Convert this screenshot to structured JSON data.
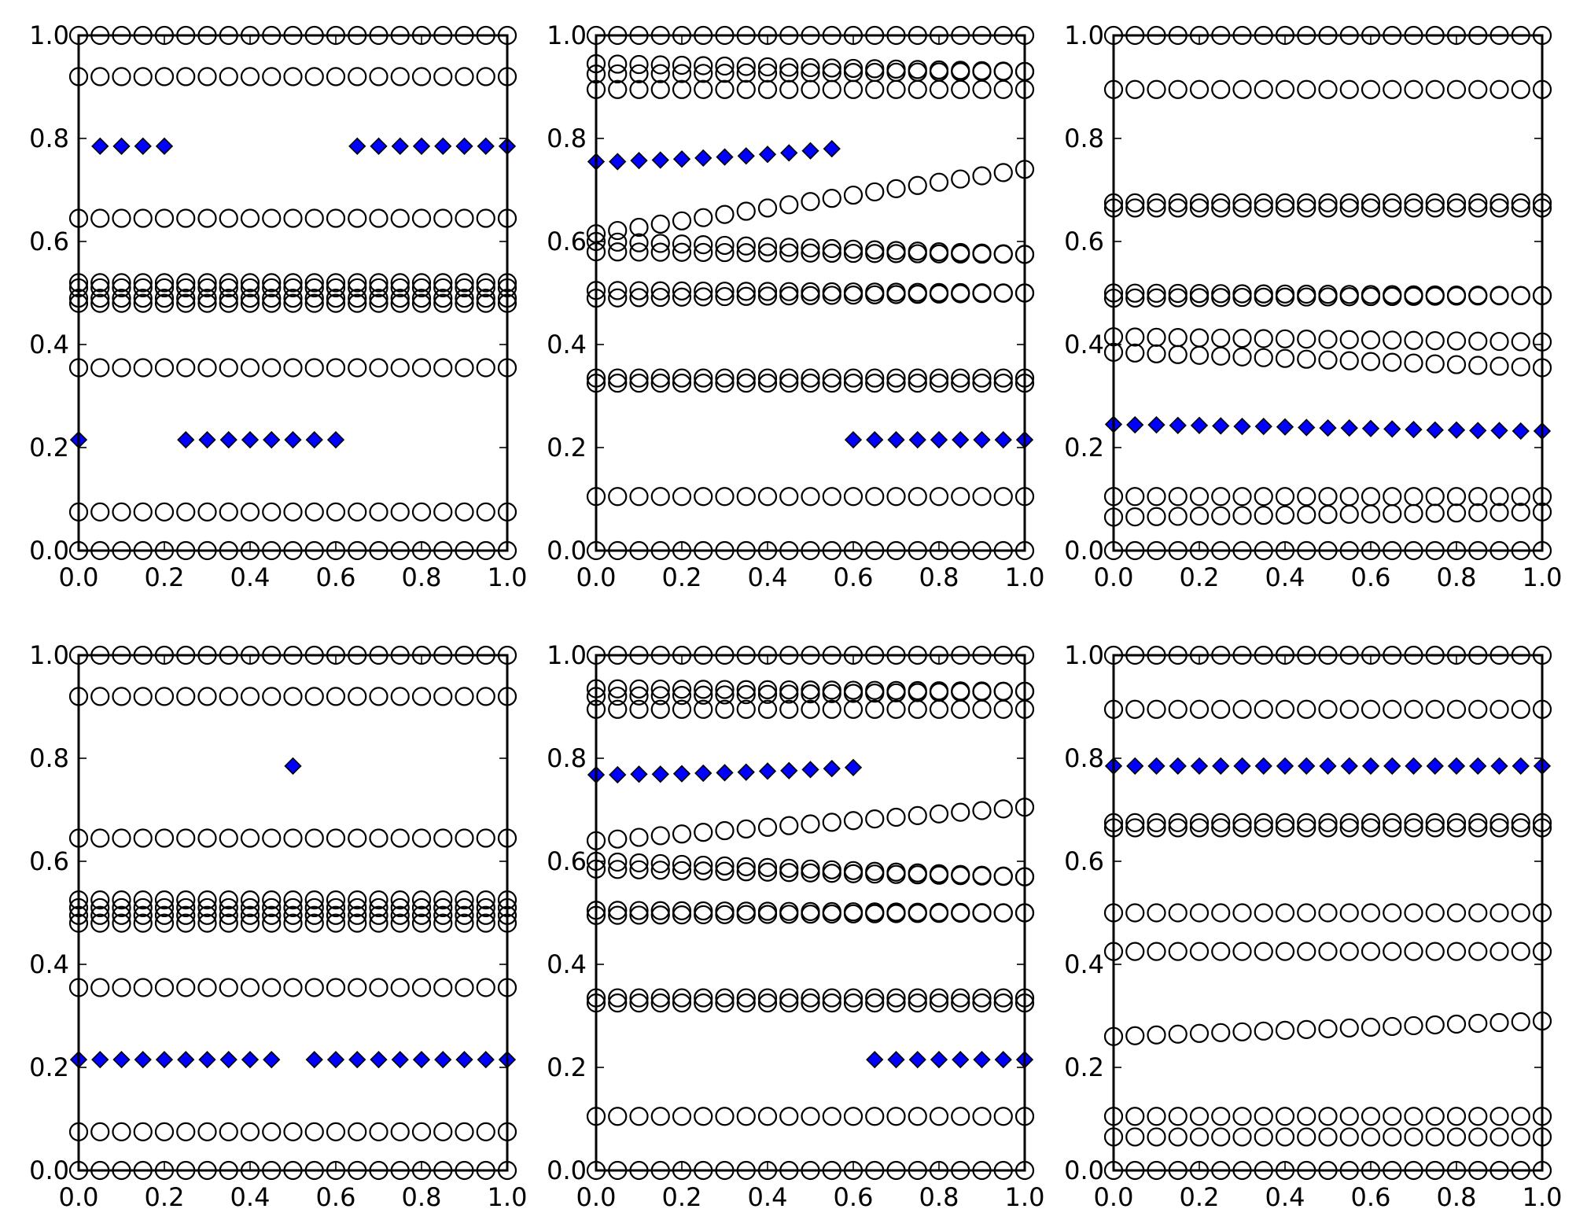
{
  "figure": {
    "layout": "2x3 grid of scatter subplots"
  },
  "colors": {
    "circle_edge": "#000000",
    "diamond_fill": "#0000ff",
    "background": "#ffffff"
  },
  "x": [
    0.0,
    0.05,
    0.1,
    0.15,
    0.2,
    0.25,
    0.3,
    0.35,
    0.4,
    0.45,
    0.5,
    0.55,
    0.6,
    0.65,
    0.7,
    0.75,
    0.8,
    0.85,
    0.9,
    0.95,
    1.0
  ],
  "chart_data": [
    {
      "type": "scatter",
      "title": "",
      "xlabel": "",
      "ylabel": "",
      "xlim": [
        0,
        1
      ],
      "ylim": [
        0,
        1
      ],
      "xticks": [
        "0.0",
        "0.2",
        "0.4",
        "0.6",
        "0.8",
        "1.0"
      ],
      "yticks": [
        "0.0",
        "0.2",
        "0.4",
        "0.6",
        "0.8",
        "1.0"
      ],
      "circle_rows": [
        {
          "y0": 0.0,
          "y1": 0.0
        },
        {
          "y0": 1.0,
          "y1": 1.0
        },
        {
          "y0": 0.92,
          "y1": 0.92
        },
        {
          "y0": 0.645,
          "y1": 0.645
        },
        {
          "y0": 0.52,
          "y1": 0.52
        },
        {
          "y0": 0.51,
          "y1": 0.51
        },
        {
          "y0": 0.49,
          "y1": 0.49
        },
        {
          "y0": 0.48,
          "y1": 0.48
        },
        {
          "y0": 0.355,
          "y1": 0.355
        },
        {
          "y0": 0.075,
          "y1": 0.075
        }
      ],
      "diamond_series": {
        "x": [
          0.0,
          0.05,
          0.1,
          0.15,
          0.2,
          0.25,
          0.3,
          0.35,
          0.4,
          0.45,
          0.5,
          0.55,
          0.6,
          0.65,
          0.7,
          0.75,
          0.8,
          0.85,
          0.9,
          0.95,
          1.0
        ],
        "y": [
          0.215,
          0.785,
          0.785,
          0.785,
          0.785,
          0.215,
          0.215,
          0.215,
          0.215,
          0.215,
          0.215,
          0.215,
          0.215,
          0.785,
          0.785,
          0.785,
          0.785,
          0.785,
          0.785,
          0.785,
          0.785
        ]
      }
    },
    {
      "type": "scatter",
      "title": "",
      "xlabel": "",
      "ylabel": "",
      "xlim": [
        0,
        1
      ],
      "ylim": [
        0,
        1
      ],
      "xticks": [
        "0.0",
        "0.2",
        "0.4",
        "0.6",
        "0.8",
        "1.0"
      ],
      "yticks": [
        "0.0",
        "0.2",
        "0.4",
        "0.6",
        "0.8",
        "1.0"
      ],
      "circle_rows": [
        {
          "y0": 0.0,
          "y1": 0.0
        },
        {
          "y0": 1.0,
          "y1": 1.0
        },
        {
          "y0": 0.945,
          "y1": 0.93
        },
        {
          "y0": 0.925,
          "y1": 0.93
        },
        {
          "y0": 0.895,
          "y1": 0.895
        },
        {
          "y0": 0.615,
          "y1": 0.74
        },
        {
          "y0": 0.6,
          "y1": 0.575
        },
        {
          "y0": 0.58,
          "y1": 0.575
        },
        {
          "y0": 0.505,
          "y1": 0.5
        },
        {
          "y0": 0.49,
          "y1": 0.5
        },
        {
          "y0": 0.335,
          "y1": 0.335
        },
        {
          "y0": 0.325,
          "y1": 0.325
        },
        {
          "y0": 0.105,
          "y1": 0.105
        }
      ],
      "diamond_series": {
        "x": [
          0.0,
          0.05,
          0.1,
          0.15,
          0.2,
          0.25,
          0.3,
          0.35,
          0.4,
          0.45,
          0.5,
          0.55,
          0.6,
          0.65,
          0.7,
          0.75,
          0.8,
          0.85,
          0.9,
          0.95,
          1.0
        ],
        "y": [
          0.755,
          0.755,
          0.757,
          0.758,
          0.76,
          0.762,
          0.764,
          0.766,
          0.769,
          0.772,
          0.776,
          0.78,
          0.215,
          0.215,
          0.215,
          0.215,
          0.215,
          0.215,
          0.215,
          0.215,
          0.215
        ]
      }
    },
    {
      "type": "scatter",
      "title": "",
      "xlabel": "",
      "ylabel": "",
      "xlim": [
        0,
        1
      ],
      "ylim": [
        0,
        1
      ],
      "xticks": [
        "0.0",
        "0.2",
        "0.4",
        "0.6",
        "0.8",
        "1.0"
      ],
      "yticks": [
        "0.0",
        "0.2",
        "0.4",
        "0.6",
        "0.8",
        "1.0"
      ],
      "circle_rows": [
        {
          "y0": 0.0,
          "y1": 0.0
        },
        {
          "y0": 1.0,
          "y1": 1.0
        },
        {
          "y0": 0.895,
          "y1": 0.895
        },
        {
          "y0": 0.675,
          "y1": 0.675
        },
        {
          "y0": 0.665,
          "y1": 0.665
        },
        {
          "y0": 0.49,
          "y1": 0.495
        },
        {
          "y0": 0.5,
          "y1": 0.495
        },
        {
          "y0": 0.415,
          "y1": 0.405
        },
        {
          "y0": 0.385,
          "y1": 0.355
        },
        {
          "y0": 0.105,
          "y1": 0.105
        },
        {
          "y0": 0.065,
          "y1": 0.075
        }
      ],
      "diamond_series": {
        "x": [
          0.0,
          0.05,
          0.1,
          0.15,
          0.2,
          0.25,
          0.3,
          0.35,
          0.4,
          0.45,
          0.5,
          0.55,
          0.6,
          0.65,
          0.7,
          0.75,
          0.8,
          0.85,
          0.9,
          0.95,
          1.0
        ],
        "y": [
          0.245,
          0.244,
          0.244,
          0.243,
          0.243,
          0.242,
          0.241,
          0.241,
          0.24,
          0.239,
          0.238,
          0.238,
          0.237,
          0.236,
          0.235,
          0.234,
          0.234,
          0.233,
          0.233,
          0.232,
          0.232
        ]
      }
    },
    {
      "type": "scatter",
      "title": "",
      "xlabel": "",
      "ylabel": "",
      "xlim": [
        0,
        1
      ],
      "ylim": [
        0,
        1
      ],
      "xticks": [
        "0.0",
        "0.2",
        "0.4",
        "0.6",
        "0.8",
        "1.0"
      ],
      "yticks": [
        "0.0",
        "0.2",
        "0.4",
        "0.6",
        "0.8",
        "1.0"
      ],
      "circle_rows": [
        {
          "y0": 0.0,
          "y1": 0.0
        },
        {
          "y0": 1.0,
          "y1": 1.0
        },
        {
          "y0": 0.92,
          "y1": 0.92
        },
        {
          "y0": 0.645,
          "y1": 0.645
        },
        {
          "y0": 0.525,
          "y1": 0.525
        },
        {
          "y0": 0.51,
          "y1": 0.51
        },
        {
          "y0": 0.495,
          "y1": 0.495
        },
        {
          "y0": 0.48,
          "y1": 0.48
        },
        {
          "y0": 0.355,
          "y1": 0.355
        },
        {
          "y0": 0.075,
          "y1": 0.075
        }
      ],
      "diamond_series": {
        "x": [
          0.0,
          0.05,
          0.1,
          0.15,
          0.2,
          0.25,
          0.3,
          0.35,
          0.4,
          0.45,
          0.5,
          0.55,
          0.6,
          0.65,
          0.7,
          0.75,
          0.8,
          0.85,
          0.9,
          0.95,
          1.0
        ],
        "y": [
          0.215,
          0.215,
          0.215,
          0.215,
          0.215,
          0.215,
          0.215,
          0.215,
          0.215,
          0.215,
          0.785,
          0.215,
          0.215,
          0.215,
          0.215,
          0.215,
          0.215,
          0.215,
          0.215,
          0.215,
          0.215
        ]
      }
    },
    {
      "type": "scatter",
      "title": "",
      "xlabel": "",
      "ylabel": "",
      "xlim": [
        0,
        1
      ],
      "ylim": [
        0,
        1
      ],
      "xticks": [
        "0.0",
        "0.2",
        "0.4",
        "0.6",
        "0.8",
        "1.0"
      ],
      "yticks": [
        "0.0",
        "0.2",
        "0.4",
        "0.6",
        "0.8",
        "1.0"
      ],
      "circle_rows": [
        {
          "y0": 0.0,
          "y1": 0.0
        },
        {
          "y0": 1.0,
          "y1": 1.0
        },
        {
          "y0": 0.935,
          "y1": 0.93
        },
        {
          "y0": 0.92,
          "y1": 0.93
        },
        {
          "y0": 0.895,
          "y1": 0.895
        },
        {
          "y0": 0.64,
          "y1": 0.705
        },
        {
          "y0": 0.6,
          "y1": 0.57
        },
        {
          "y0": 0.585,
          "y1": 0.57
        },
        {
          "y0": 0.505,
          "y1": 0.5
        },
        {
          "y0": 0.495,
          "y1": 0.5
        },
        {
          "y0": 0.335,
          "y1": 0.335
        },
        {
          "y0": 0.325,
          "y1": 0.325
        },
        {
          "y0": 0.105,
          "y1": 0.105
        }
      ],
      "diamond_series": {
        "x": [
          0.0,
          0.05,
          0.1,
          0.15,
          0.2,
          0.25,
          0.3,
          0.35,
          0.4,
          0.45,
          0.5,
          0.55,
          0.6,
          0.65,
          0.7,
          0.75,
          0.8,
          0.85,
          0.9,
          0.95,
          1.0
        ],
        "y": [
          0.768,
          0.768,
          0.769,
          0.769,
          0.77,
          0.771,
          0.772,
          0.773,
          0.775,
          0.776,
          0.778,
          0.78,
          0.782,
          0.215,
          0.215,
          0.215,
          0.215,
          0.215,
          0.215,
          0.215,
          0.215
        ]
      }
    },
    {
      "type": "scatter",
      "title": "",
      "xlabel": "",
      "ylabel": "",
      "xlim": [
        0,
        1
      ],
      "ylim": [
        0,
        1
      ],
      "xticks": [
        "0.0",
        "0.2",
        "0.4",
        "0.6",
        "0.8",
        "1.0"
      ],
      "yticks": [
        "0.0",
        "0.2",
        "0.4",
        "0.6",
        "0.8",
        "1.0"
      ],
      "circle_rows": [
        {
          "y0": 0.0,
          "y1": 0.0
        },
        {
          "y0": 1.0,
          "y1": 1.0
        },
        {
          "y0": 0.895,
          "y1": 0.895
        },
        {
          "y0": 0.675,
          "y1": 0.675
        },
        {
          "y0": 0.665,
          "y1": 0.665
        },
        {
          "y0": 0.5,
          "y1": 0.5
        },
        {
          "y0": 0.425,
          "y1": 0.425
        },
        {
          "y0": 0.26,
          "y1": 0.29
        },
        {
          "y0": 0.105,
          "y1": 0.105
        },
        {
          "y0": 0.065,
          "y1": 0.065
        }
      ],
      "diamond_series": {
        "x": [
          0.0,
          0.05,
          0.1,
          0.15,
          0.2,
          0.25,
          0.3,
          0.35,
          0.4,
          0.45,
          0.5,
          0.55,
          0.6,
          0.65,
          0.7,
          0.75,
          0.8,
          0.85,
          0.9,
          0.95,
          1.0
        ],
        "y": [
          0.785,
          0.785,
          0.785,
          0.785,
          0.785,
          0.785,
          0.785,
          0.785,
          0.785,
          0.785,
          0.785,
          0.785,
          0.785,
          0.785,
          0.785,
          0.785,
          0.785,
          0.785,
          0.785,
          0.785,
          0.785
        ]
      }
    }
  ]
}
